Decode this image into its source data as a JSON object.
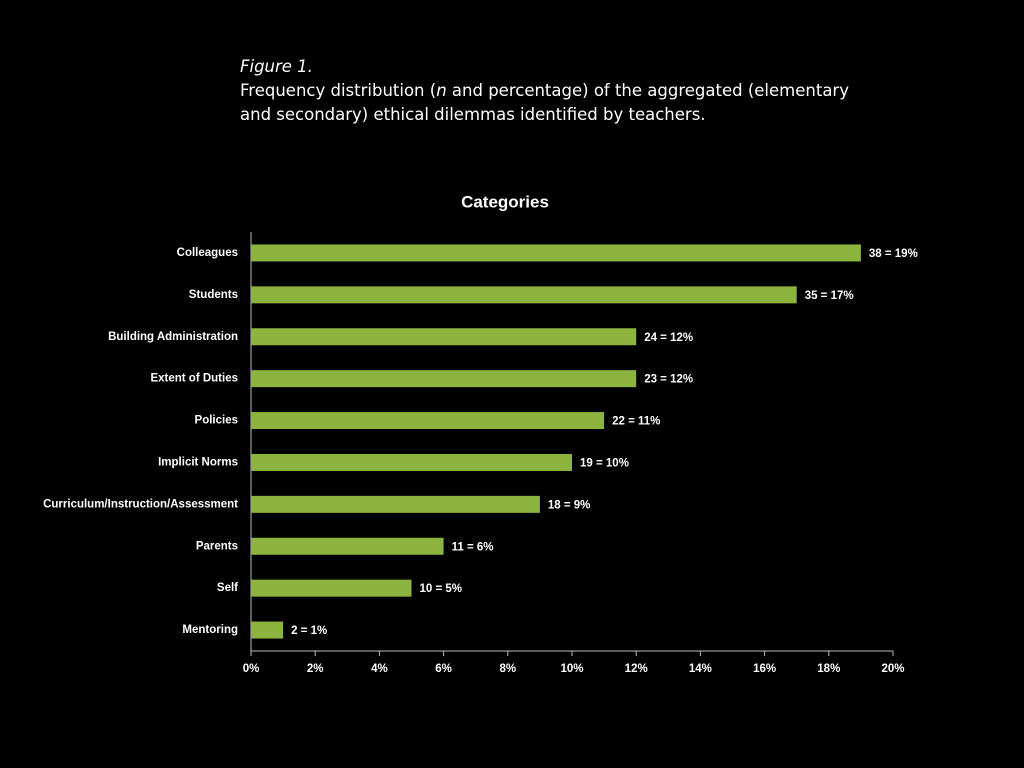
{
  "figure": {
    "label": "Figure 1.",
    "caption": [
      "Frequency distribution (",
      "n",
      " and percentage) of the aggregated (elementary and secondary) ethical dilemmas identified by teachers."
    ]
  },
  "chart_data": {
    "type": "barh",
    "title": "Categories",
    "categories": [
      "Colleagues",
      "Students",
      "Building Administration",
      "Extent of Duties",
      "Policies",
      "Implicit Norms",
      "Curriculum/Instruction/Assessment",
      "Parents",
      "Self",
      "Mentoring"
    ],
    "values": [
      19,
      17,
      12,
      12,
      11,
      10,
      9,
      6,
      5,
      1
    ],
    "value_labels": [
      "38 = 19%",
      "35 = 17%",
      "24 = 12%",
      "23 = 12%",
      "22 = 11%",
      "19 = 10%",
      "18 = 9%",
      "11 = 6%",
      "10 = 5%",
      "2 = 1%"
    ],
    "color": "#8cb43e",
    "xlim": [
      0,
      20
    ],
    "xticks": [
      {
        "value": 0,
        "label": "0%"
      },
      {
        "value": 2,
        "label": "2%"
      },
      {
        "value": 4,
        "label": "4%"
      },
      {
        "value": 6,
        "label": "6%"
      },
      {
        "value": 8,
        "label": "8%"
      },
      {
        "value": 10,
        "label": "10%"
      },
      {
        "value": 12,
        "label": "12%"
      },
      {
        "value": 14,
        "label": "14%"
      },
      {
        "value": 16,
        "label": "16%"
      },
      {
        "value": 18,
        "label": "18%"
      },
      {
        "value": 20,
        "label": "20%"
      }
    ],
    "grid": false
  }
}
